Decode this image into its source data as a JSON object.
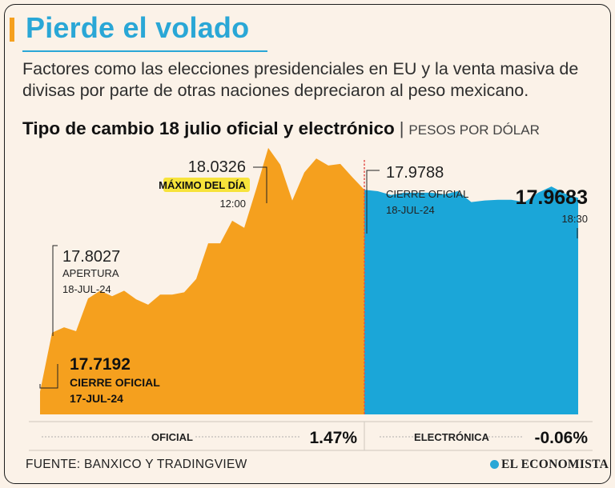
{
  "title": "Pierde el volado",
  "subtitle": "Factores como las elecciones presidenciales en EU y la venta masiva de divisas por parte de otras naciones depreciaron al peso mexicano.",
  "heading": {
    "main": "Tipo de cambio 18 julio oficial y electrónico",
    "separator": "|",
    "unit": "PESOS POR DÓLAR"
  },
  "source": "FUENTE: BANXICO Y TRADINGVIEW",
  "brand": "EL ECONOMISTA",
  "colors": {
    "oficial": "#f5a01e",
    "electronica": "#1ba6d8",
    "title": "#2aa7d6",
    "divider": "#e3504a",
    "highlight": "#f7e33b"
  },
  "chart_data": {
    "type": "area",
    "title": "Tipo de cambio 18 julio oficial y electrónico",
    "ylabel": "PESOS POR DÓLAR",
    "ylim": [
      17.69,
      18.05
    ],
    "series": [
      {
        "name": "OFICIAL",
        "values": [
          17.7192,
          17.795,
          17.802,
          17.797,
          17.839,
          17.849,
          17.842,
          17.849,
          17.838,
          17.831,
          17.844,
          17.844,
          17.847,
          17.864,
          17.91,
          17.91,
          17.939,
          17.93,
          17.98,
          18.0326,
          18.011,
          17.965,
          18.001,
          18.019,
          18.01,
          18.012,
          17.995,
          17.9788
        ],
        "change": "1.47%"
      },
      {
        "name": "ELECTRÓNICA",
        "values": [
          17.9788,
          17.977,
          17.972,
          17.975,
          17.975,
          17.975,
          17.973,
          17.977,
          17.963,
          17.965,
          17.966,
          17.966,
          17.963,
          17.975,
          17.983,
          17.974,
          17.9683
        ],
        "change": "-0.06%"
      }
    ],
    "annotations": [
      {
        "value": "17.7192",
        "lines": [
          "CIERRE OFICIAL",
          "17-JUL-24"
        ]
      },
      {
        "value": "17.8027",
        "lines": [
          "APERTURA",
          "18-JUL-24"
        ]
      },
      {
        "value": "18.0326",
        "lines": [
          "MÁXIMO DEL DÍA",
          "12:00"
        ]
      },
      {
        "value": "17.9788",
        "lines": [
          "CIERRE OFICIAL",
          "18-JUL-24"
        ]
      },
      {
        "value": "17.9683",
        "lines": [
          "18:30"
        ]
      }
    ],
    "footer": [
      {
        "label": "OFICIAL",
        "value": "1.47%"
      },
      {
        "label": "ELECTRÓNICA",
        "value": "-0.06%"
      }
    ]
  }
}
